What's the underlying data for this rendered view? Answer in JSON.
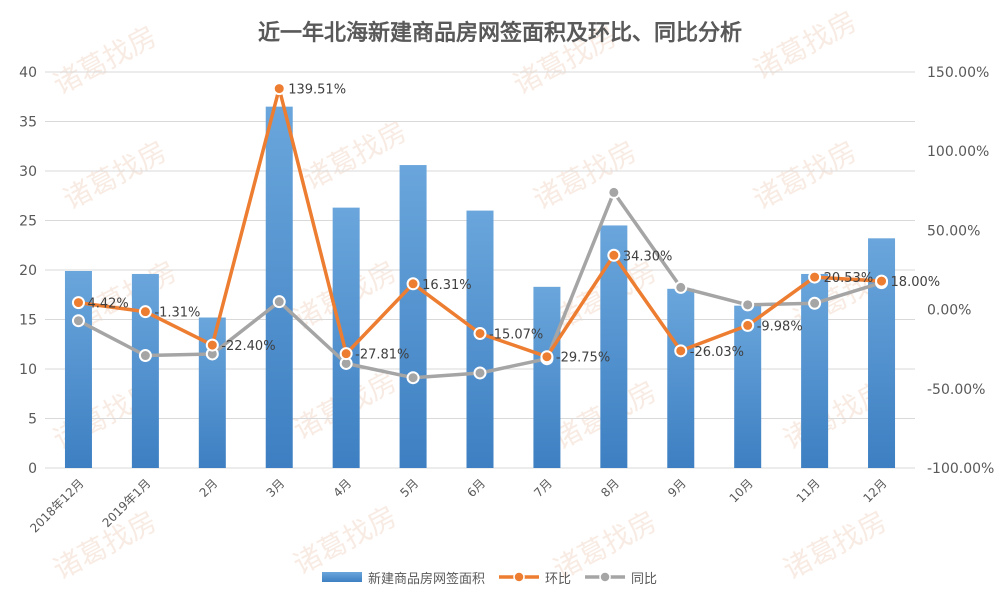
{
  "chart_data": {
    "type": "bar-line-combo",
    "title": "近一年北海新建商品房网签面积及环比、同比分析",
    "categories": [
      "2018年12月",
      "2019年1月",
      "2月",
      "3月",
      "4月",
      "5月",
      "6月",
      "7月",
      "8月",
      "9月",
      "10月",
      "11月",
      "12月"
    ],
    "left_axis": {
      "min": 0,
      "max": 40,
      "step": 5,
      "ticks": [
        "0",
        "5",
        "10",
        "15",
        "20",
        "25",
        "30",
        "35",
        "40"
      ]
    },
    "right_axis": {
      "min": -100,
      "max": 150,
      "step": 50,
      "ticks": [
        "-100.00%",
        "-50.00%",
        "0.00%",
        "50.00%",
        "100.00%",
        "150.00%"
      ]
    },
    "series": [
      {
        "name": "新建商品房网签面积",
        "kind": "bar",
        "axis": "left",
        "color": "#5b9bd5",
        "values": [
          19.9,
          19.6,
          15.2,
          36.5,
          26.3,
          30.6,
          26.0,
          18.3,
          24.5,
          18.1,
          16.4,
          19.6,
          23.2
        ]
      },
      {
        "name": "环比",
        "kind": "line",
        "axis": "right",
        "color": "#ed7d31",
        "values": [
          4.42,
          -1.31,
          -22.4,
          139.51,
          -27.81,
          16.31,
          -15.07,
          -29.75,
          34.3,
          -26.03,
          -9.98,
          20.53,
          18.0
        ],
        "labels": [
          "4.42%",
          "-1.31%",
          "-22.40%",
          "139.51%",
          "-27.81%",
          "16.31%",
          "-15.07%",
          "-29.75%",
          "34.30%",
          "-26.03%",
          "-9.98%",
          "20.53%",
          "18.00%"
        ]
      },
      {
        "name": "同比",
        "kind": "line",
        "axis": "right",
        "color": "#a5a5a5",
        "values": [
          -7,
          -29,
          -28,
          5,
          -34,
          -43,
          -40,
          -31,
          74,
          14,
          3,
          4,
          17
        ]
      }
    ],
    "legend_position": "bottom",
    "grid": true
  },
  "watermark": "诸葛找房"
}
